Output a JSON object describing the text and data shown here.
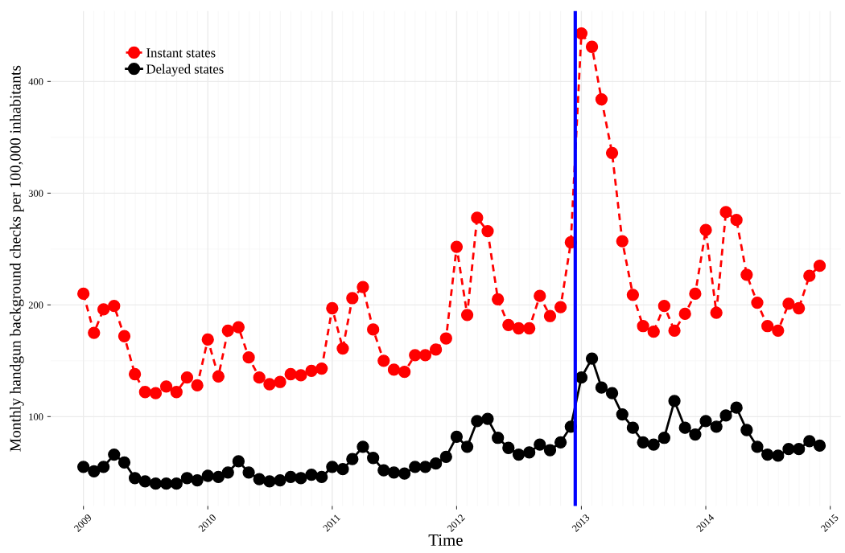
{
  "chart_data": {
    "type": "line",
    "xlabel": "Time",
    "ylabel": "Monthly handgun background checks per 100,000 inhabitants",
    "x": [
      "2009-01",
      "2009-02",
      "2009-03",
      "2009-04",
      "2009-05",
      "2009-06",
      "2009-07",
      "2009-08",
      "2009-09",
      "2009-10",
      "2009-11",
      "2009-12",
      "2010-01",
      "2010-02",
      "2010-03",
      "2010-04",
      "2010-05",
      "2010-06",
      "2010-07",
      "2010-08",
      "2010-09",
      "2010-10",
      "2010-11",
      "2010-12",
      "2011-01",
      "2011-02",
      "2011-03",
      "2011-04",
      "2011-05",
      "2011-06",
      "2011-07",
      "2011-08",
      "2011-09",
      "2011-10",
      "2011-11",
      "2011-12",
      "2012-01",
      "2012-02",
      "2012-03",
      "2012-04",
      "2012-05",
      "2012-06",
      "2012-07",
      "2012-08",
      "2012-09",
      "2012-10",
      "2012-11",
      "2012-12",
      "2013-01",
      "2013-02",
      "2013-03",
      "2013-04",
      "2013-05",
      "2013-06",
      "2013-07",
      "2013-08",
      "2013-09",
      "2013-10",
      "2013-11",
      "2013-12",
      "2014-01",
      "2014-02",
      "2014-03",
      "2014-04",
      "2014-05",
      "2014-06",
      "2014-07",
      "2014-08",
      "2014-09",
      "2014-10",
      "2014-11",
      "2014-12"
    ],
    "series": [
      {
        "name": "Instant states",
        "color": "#ff0000",
        "line_style": "dashed",
        "values": [
          210,
          175,
          196,
          199,
          172,
          138,
          122,
          121,
          127,
          122,
          135,
          128,
          169,
          136,
          177,
          180,
          153,
          135,
          129,
          131,
          138,
          137,
          141,
          143,
          197,
          161,
          206,
          216,
          178,
          150,
          142,
          140,
          155,
          155,
          160,
          170,
          252,
          191,
          278,
          266,
          205,
          182,
          179,
          179,
          208,
          190,
          198,
          256,
          443,
          431,
          384,
          336,
          257,
          209,
          181,
          176,
          199,
          177,
          192,
          210,
          267,
          193,
          283,
          276,
          227,
          202,
          181,
          177,
          201,
          197,
          226,
          235
        ]
      },
      {
        "name": "Delayed states",
        "color": "#000000",
        "line_style": "solid",
        "values": [
          55,
          51,
          55,
          66,
          59,
          45,
          42,
          40,
          40,
          40,
          45,
          43,
          47,
          46,
          50,
          60,
          50,
          44,
          42,
          43,
          46,
          45,
          48,
          46,
          55,
          53,
          62,
          73,
          63,
          52,
          50,
          49,
          55,
          55,
          58,
          64,
          82,
          73,
          96,
          98,
          81,
          72,
          66,
          68,
          75,
          70,
          77,
          91,
          135,
          152,
          126,
          121,
          102,
          90,
          77,
          75,
          81,
          114,
          90,
          84,
          96,
          91,
          101,
          108,
          88,
          73,
          66,
          65,
          71,
          71,
          78,
          74
        ]
      }
    ],
    "xlim": [
      "2008-09-27",
      "2015-02-01"
    ],
    "xticks": [
      {
        "value": "2009-01-01",
        "label": "2009"
      },
      {
        "value": "2010-01-01",
        "label": "2010"
      },
      {
        "value": "2011-01-01",
        "label": "2011"
      },
      {
        "value": "2012-01-01",
        "label": "2012"
      },
      {
        "value": "2013-01-01",
        "label": "2013"
      },
      {
        "value": "2014-01-01",
        "label": "2014"
      },
      {
        "value": "2015-01-01",
        "label": "2015"
      }
    ],
    "ylim": [
      20,
      463
    ],
    "yticks": [
      100,
      200,
      300,
      400
    ],
    "ref_lines": [
      {
        "axis": "x",
        "value": "2012-12-14",
        "color": "#0000ff"
      }
    ],
    "grid": true,
    "legend": "top left",
    "marker": "circle"
  }
}
